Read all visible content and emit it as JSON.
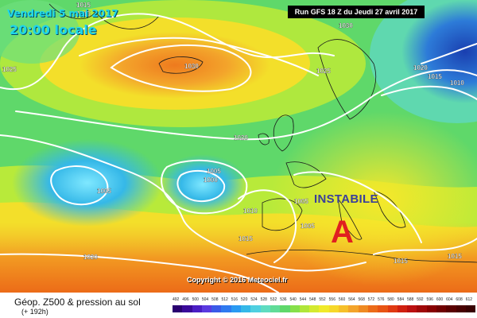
{
  "header": {
    "date_text": "Vendredi 5 mai 2017",
    "local_time": "20:00 locale",
    "run_text": "Run GFS 18 Z du Jeudi 27 avril 2017"
  },
  "annotations": {
    "instabile": "INSTABILE",
    "marker_letter": "A",
    "copyright": "Copyright © 2016 Meteociel.fr"
  },
  "isobar_labels": [
    "1015",
    "1015",
    "1030",
    "1025",
    "1030",
    "1025",
    "1020",
    "1015",
    "1010",
    "1020",
    "1005",
    "1000",
    "1005",
    "1005",
    "1010",
    "1005",
    "1015",
    "1020",
    "1015",
    "1015"
  ],
  "footer": {
    "title": "Géop. Z500 & pression au sol",
    "lead": "(+ 192h)",
    "scale_values": [
      "492",
      "496",
      "500",
      "504",
      "508",
      "512",
      "516",
      "520",
      "524",
      "528",
      "532",
      "536",
      "540",
      "544",
      "548",
      "552",
      "556",
      "560",
      "564",
      "568",
      "572",
      "576",
      "580",
      "584",
      "588",
      "592",
      "596",
      "600",
      "604",
      "608",
      "612"
    ]
  },
  "colors": {
    "warm_core": "#ee7a1e",
    "cool_core": "#35b8e8",
    "cold_core": "#1a4fc4",
    "mid_green": "#8fe04a",
    "yellow": "#f3ef2a",
    "accent_red": "#e02020",
    "accent_blue": "#3a3f9a"
  }
}
